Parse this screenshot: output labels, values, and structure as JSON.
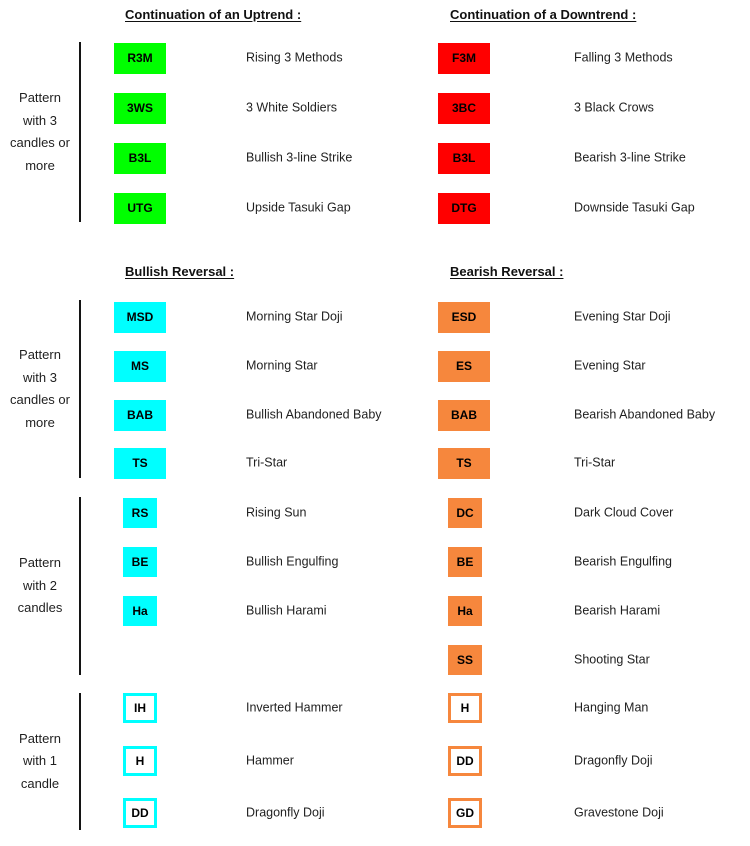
{
  "headings": {
    "uptrend": "Continuation of an Uptrend :",
    "downtrend": "Continuation of a Downtrend :",
    "bullish_reversal": "Bullish Reversal :",
    "bearish_reversal": "Bearish Reversal :"
  },
  "colors": {
    "green": "#00FF00",
    "red": "#FF0000",
    "cyan": "#00FFFF",
    "orange": "#F6873D",
    "bar": "#141414",
    "text": "#1f1f1f",
    "badge_text": "#000000",
    "background": "#ffffff"
  },
  "groups": [
    {
      "id": "continuation-3-candles",
      "label_lines": [
        "Pattern",
        "with 3",
        "candles or",
        "more"
      ],
      "left_style": "green-fill-large",
      "right_style": "red-fill-large",
      "left_rows": [
        {
          "code": "R3M",
          "name": "Rising 3 Methods"
        },
        {
          "code": "3WS",
          "name": "3 White Soldiers"
        },
        {
          "code": "B3L",
          "name": "Bullish 3-line Strike"
        },
        {
          "code": "UTG",
          "name": "Upside Tasuki Gap"
        }
      ],
      "right_rows": [
        {
          "code": "F3M",
          "name": "Falling 3 Methods"
        },
        {
          "code": "3BC",
          "name": "3 Black Crows"
        },
        {
          "code": "B3L",
          "name": "Bearish 3-line Strike"
        },
        {
          "code": "DTG",
          "name": "Downside Tasuki Gap"
        }
      ]
    },
    {
      "id": "reversal-3-candles",
      "label_lines": [
        "Pattern",
        "with 3",
        "candles or",
        "more"
      ],
      "left_style": "cyan-fill-large",
      "right_style": "orange-fill-large",
      "left_rows": [
        {
          "code": "MSD",
          "name": "Morning Star Doji"
        },
        {
          "code": "MS",
          "name": "Morning Star"
        },
        {
          "code": "BAB",
          "name": "Bullish Abandoned Baby"
        },
        {
          "code": "TS",
          "name": "Tri-Star"
        }
      ],
      "right_rows": [
        {
          "code": "ESD",
          "name": "Evening Star Doji"
        },
        {
          "code": "ES",
          "name": "Evening Star"
        },
        {
          "code": "BAB",
          "name": "Bearish Abandoned Baby"
        },
        {
          "code": "TS",
          "name": "Tri-Star"
        }
      ]
    },
    {
      "id": "reversal-2-candles",
      "label_lines": [
        "Pattern",
        "with 2",
        "candles"
      ],
      "left_style": "cyan-fill-small",
      "right_style": "orange-fill-small",
      "left_rows": [
        {
          "code": "RS",
          "name": "Rising Sun"
        },
        {
          "code": "BE",
          "name": "Bullish Engulfing"
        },
        {
          "code": "Ha",
          "name": "Bullish Harami"
        }
      ],
      "right_rows": [
        {
          "code": "DC",
          "name": "Dark Cloud Cover"
        },
        {
          "code": "BE",
          "name": "Bearish Engulfing"
        },
        {
          "code": "Ha",
          "name": "Bearish Harami"
        },
        {
          "code": "SS",
          "name": "Shooting Star"
        }
      ]
    },
    {
      "id": "reversal-1-candle",
      "label_lines": [
        "Pattern",
        "with 1",
        "candle"
      ],
      "left_style": "cyan-outline-small",
      "right_style": "orange-outline-small",
      "left_rows": [
        {
          "code": "IH",
          "name": "Inverted Hammer"
        },
        {
          "code": "H",
          "name": "Hammer"
        },
        {
          "code": "DD",
          "name": "Dragonfly Doji"
        }
      ],
      "right_rows": [
        {
          "code": "H",
          "name": "Hanging Man"
        },
        {
          "code": "DD",
          "name": "Dragonfly Doji"
        },
        {
          "code": "GD",
          "name": "Gravestone Doji"
        }
      ]
    }
  ]
}
